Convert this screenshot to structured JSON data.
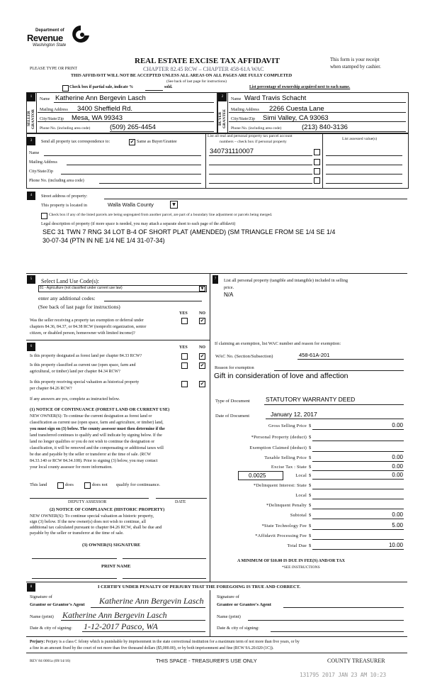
{
  "header": {
    "logo": {
      "line1": "Department of",
      "line2": "Revenue",
      "line3": "Washington State"
    },
    "title": "REAL ESTATE EXCISE TAX AFFIDAVIT",
    "chapter": "CHAPTER 82.45 RCW – CHAPTER 458-61A WAC",
    "receipt_line1": "This form is your receipt",
    "receipt_line2": "when stamped by cashier.",
    "type_or_print": "PLEASE TYPE OR PRINT",
    "warning": "THIS AFFIDAVIT WILL NOT BE ACCEPTED UNLESS ALL AREAS ON ALL PAGES ARE FULLY COMPLETED",
    "see_back": "(See back of last page for instructions)",
    "partial_sale_label": "Check box if partial sale, indicate %",
    "partial_sale_sold": "sold.",
    "partial_sale_checked": false,
    "ownership_note": "List percentage of ownership acquired next to each name."
  },
  "section1": {
    "number": "1",
    "side_label": "SELLER GRANTOR",
    "name_label": "Name",
    "name": "Katherine Ann Bergevin Lasch",
    "mailing_label": "Mailing Address",
    "mailing": "3400 Sheffield Rd.",
    "city_label": "City/State/Zip",
    "city": "Mesa, WA  99343",
    "phone_label": "Phone No. (including area code)",
    "phone": "(509) 265-4454"
  },
  "section2": {
    "number": "2",
    "side_label": "BUYER GRANTEE",
    "name_label": "Name",
    "name": "Ward Travis Schacht",
    "mailing_label": "Mailing Address",
    "mailing": "2266 Cuesta Lane",
    "city_label": "City/State/Zip",
    "city": "Simi Valley, CA  93063",
    "phone_label": "Phone No. (including area code)",
    "phone": "(213) 840-3136"
  },
  "section3": {
    "number": "3",
    "send_label": "Send all property tax correspondence to:",
    "same_as_label": "Same as Buyer/Grantee",
    "same_as_checked": true,
    "name_label": "Name",
    "mailing_label": "Mailing Address",
    "city_label": "City/State/Zip",
    "phone_label": "Phone No. (including area code)",
    "parcel_header1": "List all real and personal property tax parcel account",
    "parcel_header2": "numbers – check box if personal property",
    "assessed_header": "List assessed value(s)",
    "parcels": [
      {
        "number": "340731110007",
        "personal": false
      },
      {
        "number": "",
        "personal": false
      },
      {
        "number": "",
        "personal": false
      },
      {
        "number": "",
        "personal": false
      }
    ]
  },
  "section4": {
    "number": "4",
    "street_label": "Street address of property:",
    "located_label": "This property is located in",
    "county": "Walla Walla County",
    "segregated_label": "Check box if any of the listed parcels are being segregated from another parcel, are part of a boundary line adjustment or parcels being merged.",
    "segregated_checked": false,
    "legal_label": "Legal description of property (if more space is needed, you may attach a separate sheet to each page of the affidavit)",
    "legal_line1": "SEC 31 TWN 7 RNG 34 LOT B-4 OF SHORT PLAT (AMENDED) (SM TRIANGLE FROM SE 1/4 SE 1/4",
    "legal_line2": "30-07-34 (PTN IN NE 1/4 NE 1/4 31-07-34)"
  },
  "section5": {
    "number": "5",
    "select_label": "Select Land Use Code(s):",
    "land_use_code": "81 - Agriculture (not classified under current use law)",
    "additional_label": "enter any additional codes:",
    "see_back": "(See back of last page for instructions)",
    "yes": "YES",
    "no": "NO",
    "exemption_q": [
      "Was the seller receiving a property tax exemption or deferral under",
      "chapters 84.36, 84.37, or 84.38 RCW (nonprofit organization, senior",
      "citizen, or disabled person, homeowner with limited income)?"
    ],
    "exemption_answer": "NO"
  },
  "section6": {
    "number": "6",
    "yes": "YES",
    "no": "NO",
    "questions": [
      {
        "lines": [
          "Is this property designated as forest land per chapter 84.33 RCW?"
        ],
        "answer": "NO"
      },
      {
        "lines": [
          "Is this property classified as current use (open space, farm and",
          "agricultural, or timber) land per chapter 84.34 RCW?"
        ],
        "answer": "NO"
      },
      {
        "lines": [
          "Is this property receiving special valuation as historical property",
          "per chapter 84.26 RCW?"
        ],
        "answer": "NO"
      }
    ],
    "if_yes": "If any answers are yes, complete as instructed below.",
    "notice1_title": "(1) NOTICE OF CONTINUANCE  (FOREST LAND OR CURRENT USE)",
    "notice1_lines": [
      "NEW OWNER(S): To continue the current designation as forest land or",
      "classification as current use (open space, farm and agriculture, or timber) land,",
      "you must sign on (3) below. The county assessor must then determine if the",
      "land transferred continues to qualify and will indicate by signing below. If the",
      "land no longer qualifies or you do not wish to continue the designation or",
      "classification, it will be removed and the compensating or additional taxes will",
      "be due and payable by the seller or transferor at the time of sale. (RCW",
      "84.33.140 or RCW 84.34.108). Prior to signing (3) below, you may contact",
      "your local county assessor for more information."
    ],
    "this_land": "This land",
    "does": "does",
    "does_not": "does not",
    "qualify": "qualify for continuance.",
    "deputy_assessor": "DEPUTY ASSESSOR",
    "date": "DATE",
    "notice2_title": "(2) NOTICE OF COMPLIANCE (HISTORIC PROPERTY)",
    "notice2_lines": [
      "NEW OWNER(S): To continue special valuation as historic property,",
      "sign (3) below. If the new owner(s) does not wish to continue, all",
      "additional tax calculated pursuant to chapter 84.26 RCW, shall be due and",
      "payable by the seller or transferor at the time of sale."
    ],
    "owner_signature": "(3)  OWNER(S) SIGNATURE",
    "print_name": "PRINT NAME"
  },
  "section7": {
    "number": "7",
    "personal_label1": "List all  personal property (tangible and intangible) included in selling",
    "personal_label2": "price.",
    "personal_value": "N/A",
    "exemption_intro": "If claiming an exemption, list WAC number and reason for exemption:",
    "wac_label": "WAC No. (Section/Subsection)",
    "wac": "458-61A-201",
    "reason_label": "Reason for exemption",
    "reason": "Gift in consideration of love and affection",
    "doc_type_label": "Type of Document",
    "doc_type": "STATUTORY WARRANTY DEED",
    "doc_date_label": "Date of Document",
    "doc_date": "January 12, 2017",
    "local_rate": "0.0025",
    "amounts": [
      {
        "label": "Gross Selling Price",
        "value": "0.00"
      },
      {
        "label": "*Personal Property (deduct)",
        "value": ""
      },
      {
        "label": "Exemption Claimed (deduct)",
        "value": ""
      },
      {
        "label": "Taxable Selling Price",
        "value": "0.00"
      },
      {
        "label": "Excise Tax : State",
        "value": "0.00"
      },
      {
        "label": "Local",
        "value": "0.00"
      },
      {
        "label": "*Delinquent Interest: State",
        "value": ""
      },
      {
        "label": "Local",
        "value": ""
      },
      {
        "label": "*Delinquent Penalty",
        "value": ""
      },
      {
        "label": "Subtotal",
        "value": "0.00"
      },
      {
        "label": "*State Technology Fee",
        "value": "5.00"
      },
      {
        "label": "*Affidavit Processing Fee",
        "value": ""
      },
      {
        "label": "Total Due",
        "value": "10.00"
      }
    ],
    "currency": "$",
    "minimum": "A MINIMUM OF $10.00 IS DUE IN FEE(S) AND/OR TAX",
    "see_instructions": "*SEE INSTRUCTIONS"
  },
  "section8": {
    "number": "8",
    "certify": "I CERTIFY UNDER PENALTY OF PERJURY THAT THE FOREGOING IS TRUE AND CORRECT.",
    "grantor_sig_label1": "Signature of",
    "grantor_sig_label2": "Grantor or Grantor's Agent",
    "grantor_signature": "Katherine Ann Bergevin Lasch",
    "grantee_sig_label1": "Signature of",
    "grantee_sig_label2": "Grantee or Grantee's Agent",
    "name_print_label": "Name (print)",
    "grantor_name_print": "Katherine Ann Bergevin Lasch",
    "date_city_label": "Date & city of signing:",
    "grantor_date_city": "1-12-2017  Pasco, WA"
  },
  "footer": {
    "perjury_label": "Perjury:",
    "perjury_text1": "Perjury is a class C felony which is punishable by imprisonment in the state correctional institution for a maximum term of not more than five years, or by",
    "perjury_text2": "a fine in an amount fixed by the court of not more than five thousand dollars ($5,000.00), or by both imprisonment and fine (RCW 9A.20.020 (1C)).",
    "form_id": "REV 84 0001a (09/14/16)",
    "treasurer_only": "THIS SPACE - TREASURER'S USE ONLY",
    "county_treasurer": "COUNTY TREASURER",
    "stamp": "131795 2017 JAN 23 AM 10:23"
  }
}
